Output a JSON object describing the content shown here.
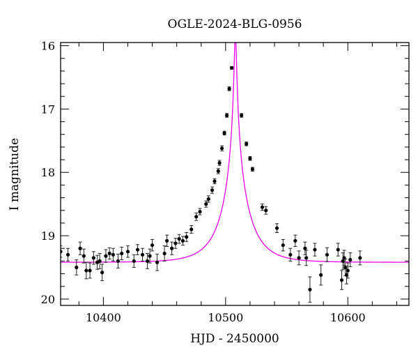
{
  "chart_data": {
    "type": "scatter",
    "title": "OGLE-2024-BLG-0956",
    "xlabel": "HJD - 2450000",
    "ylabel": "I magnitude",
    "xlim": [
      10365,
      10650
    ],
    "ylim": [
      20.1,
      15.95
    ],
    "y_inverted": true,
    "x_ticks": [
      10400,
      10500,
      10600
    ],
    "y_ticks": [
      16,
      17,
      18,
      19,
      20
    ],
    "model": {
      "color": "#ee00ee",
      "baseline_mag": 19.42,
      "t0": 10508,
      "tE": 22,
      "u0": 0.035
    },
    "point_color": "#000000",
    "points": [
      {
        "x": 10365,
        "y": 19.25,
        "err": 0.09
      },
      {
        "x": 10371,
        "y": 19.3,
        "err": 0.1
      },
      {
        "x": 10378,
        "y": 19.5,
        "err": 0.12
      },
      {
        "x": 10381,
        "y": 19.2,
        "err": 0.1
      },
      {
        "x": 10384,
        "y": 19.32,
        "err": 0.11
      },
      {
        "x": 10386,
        "y": 19.55,
        "err": 0.13
      },
      {
        "x": 10389,
        "y": 19.55,
        "err": 0.12
      },
      {
        "x": 10392,
        "y": 19.35,
        "err": 0.1
      },
      {
        "x": 10395,
        "y": 19.42,
        "err": 0.11
      },
      {
        "x": 10397,
        "y": 19.4,
        "err": 0.12
      },
      {
        "x": 10399,
        "y": 19.58,
        "err": 0.13
      },
      {
        "x": 10402,
        "y": 19.32,
        "err": 0.1
      },
      {
        "x": 10405,
        "y": 19.28,
        "err": 0.09
      },
      {
        "x": 10408,
        "y": 19.3,
        "err": 0.1
      },
      {
        "x": 10412,
        "y": 19.4,
        "err": 0.11
      },
      {
        "x": 10415,
        "y": 19.28,
        "err": 0.1
      },
      {
        "x": 10420,
        "y": 19.25,
        "err": 0.09
      },
      {
        "x": 10425,
        "y": 19.4,
        "err": 0.1
      },
      {
        "x": 10428,
        "y": 19.22,
        "err": 0.08
      },
      {
        "x": 10432,
        "y": 19.3,
        "err": 0.1
      },
      {
        "x": 10436,
        "y": 19.4,
        "err": 0.12
      },
      {
        "x": 10438,
        "y": 19.32,
        "err": 0.11
      },
      {
        "x": 10440,
        "y": 19.15,
        "err": 0.09
      },
      {
        "x": 10444,
        "y": 19.42,
        "err": 0.13
      },
      {
        "x": 10450,
        "y": 19.28,
        "err": 0.12
      },
      {
        "x": 10452,
        "y": 19.08,
        "err": 0.09
      },
      {
        "x": 10456,
        "y": 19.2,
        "err": 0.1
      },
      {
        "x": 10459,
        "y": 19.12,
        "err": 0.08
      },
      {
        "x": 10462,
        "y": 19.05,
        "err": 0.07
      },
      {
        "x": 10465,
        "y": 19.08,
        "err": 0.07
      },
      {
        "x": 10468,
        "y": 19.02,
        "err": 0.07
      },
      {
        "x": 10472,
        "y": 18.9,
        "err": 0.06
      },
      {
        "x": 10476,
        "y": 18.7,
        "err": 0.06
      },
      {
        "x": 10479,
        "y": 18.62,
        "err": 0.05
      },
      {
        "x": 10484,
        "y": 18.5,
        "err": 0.05
      },
      {
        "x": 10486,
        "y": 18.42,
        "err": 0.05
      },
      {
        "x": 10489,
        "y": 18.28,
        "err": 0.05
      },
      {
        "x": 10491,
        "y": 18.14,
        "err": 0.04
      },
      {
        "x": 10494,
        "y": 17.98,
        "err": 0.04
      },
      {
        "x": 10495,
        "y": 17.85,
        "err": 0.04
      },
      {
        "x": 10497,
        "y": 17.62,
        "err": 0.04
      },
      {
        "x": 10499,
        "y": 17.38,
        "err": 0.03
      },
      {
        "x": 10501,
        "y": 17.1,
        "err": 0.03
      },
      {
        "x": 10503,
        "y": 16.68,
        "err": 0.03
      },
      {
        "x": 10505,
        "y": 16.35,
        "err": 0.02
      },
      {
        "x": 10513,
        "y": 17.1,
        "err": 0.03
      },
      {
        "x": 10517,
        "y": 17.55,
        "err": 0.03
      },
      {
        "x": 10520,
        "y": 17.78,
        "err": 0.03
      },
      {
        "x": 10522,
        "y": 17.95,
        "err": 0.03
      },
      {
        "x": 10530,
        "y": 18.55,
        "err": 0.05
      },
      {
        "x": 10533,
        "y": 18.6,
        "err": 0.06
      },
      {
        "x": 10542,
        "y": 18.88,
        "err": 0.07
      },
      {
        "x": 10547,
        "y": 19.15,
        "err": 0.09
      },
      {
        "x": 10553,
        "y": 19.3,
        "err": 0.1
      },
      {
        "x": 10557,
        "y": 19.08,
        "err": 0.09
      },
      {
        "x": 10560,
        "y": 19.35,
        "err": 0.11
      },
      {
        "x": 10565,
        "y": 19.2,
        "err": 0.1
      },
      {
        "x": 10566,
        "y": 19.35,
        "err": 0.12
      },
      {
        "x": 10569,
        "y": 19.85,
        "err": 0.2
      },
      {
        "x": 10573,
        "y": 19.22,
        "err": 0.1
      },
      {
        "x": 10578,
        "y": 19.62,
        "err": 0.16
      },
      {
        "x": 10583,
        "y": 19.3,
        "err": 0.11
      },
      {
        "x": 10592,
        "y": 19.22,
        "err": 0.1
      },
      {
        "x": 10595,
        "y": 19.7,
        "err": 0.15
      },
      {
        "x": 10596,
        "y": 19.4,
        "err": 0.13
      },
      {
        "x": 10597,
        "y": 19.35,
        "err": 0.12
      },
      {
        "x": 10598,
        "y": 19.5,
        "err": 0.13
      },
      {
        "x": 10599,
        "y": 19.62,
        "err": 0.14
      },
      {
        "x": 10600,
        "y": 19.55,
        "err": 0.12
      },
      {
        "x": 10602,
        "y": 19.38,
        "err": 0.11
      },
      {
        "x": 10610,
        "y": 19.35,
        "err": 0.11
      }
    ]
  }
}
